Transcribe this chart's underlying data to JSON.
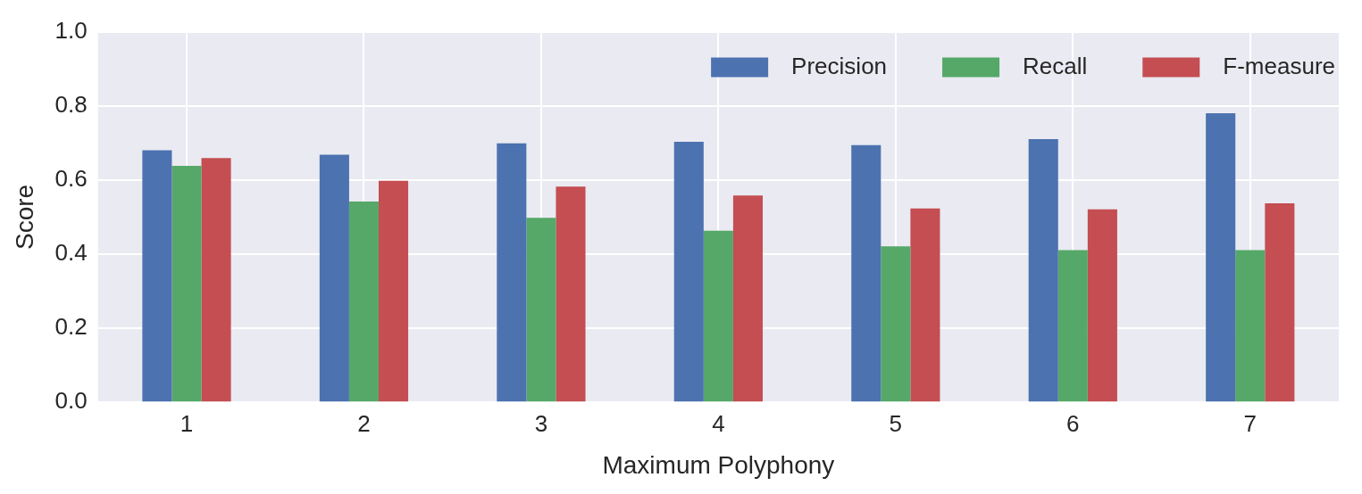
{
  "chart_data": {
    "type": "bar",
    "xlabel": "Maximum Polyphony",
    "ylabel": "Score",
    "categories": [
      "1",
      "2",
      "3",
      "4",
      "5",
      "6",
      "7"
    ],
    "series": [
      {
        "name": "Precision",
        "color": "#4c72b0",
        "values": [
          0.68,
          0.668,
          0.699,
          0.703,
          0.694,
          0.71,
          0.78
        ]
      },
      {
        "name": "Recall",
        "color": "#55a868",
        "values": [
          0.638,
          0.542,
          0.498,
          0.463,
          0.421,
          0.411,
          0.411
        ]
      },
      {
        "name": "F-measure",
        "color": "#c44e52",
        "values": [
          0.659,
          0.598,
          0.582,
          0.558,
          0.523,
          0.521,
          0.537
        ]
      }
    ],
    "ylim": [
      0,
      1
    ],
    "yticks": [
      {
        "value": 0,
        "label": "0.0"
      },
      {
        "value": 0.2,
        "label": "0.2"
      },
      {
        "value": 0.4,
        "label": "0.4"
      },
      {
        "value": 0.6,
        "label": "0.6"
      },
      {
        "value": 0.8,
        "label": "0.8"
      },
      {
        "value": 1,
        "label": "1.0"
      }
    ],
    "grid": true,
    "legend": "top right"
  }
}
